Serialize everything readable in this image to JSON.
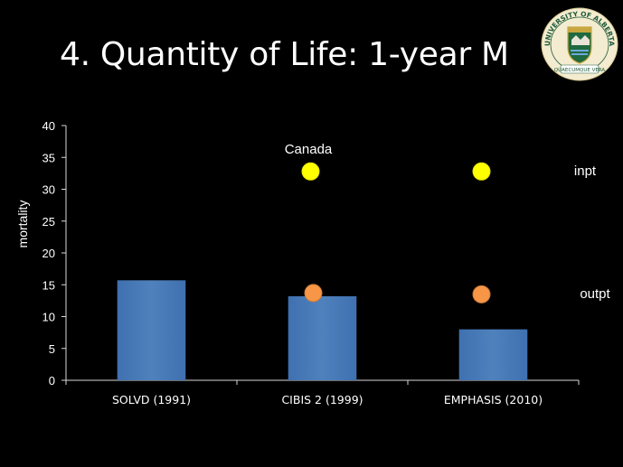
{
  "slide": {
    "title": "4. Quantity of Life: 1-year M"
  },
  "logo": {
    "top_text": "UNIVERSITY OF ALBERTA",
    "motto": "QUAECUMQUE VERA",
    "icon": "university-crest"
  },
  "chart_data": {
    "type": "bar",
    "categories": [
      "SOLVD (1991)",
      "CIBIS 2 (1999)",
      "EMPHASIS (2010)"
    ],
    "values": [
      15.7,
      13.2,
      8.0
    ],
    "ylabel": "mortality",
    "xlabel": "",
    "ylim": [
      0,
      40
    ],
    "yticks": [
      0,
      5,
      10,
      15,
      20,
      25,
      30,
      35,
      40
    ],
    "bar_color": "#4f81bd",
    "overlay_points": [
      {
        "label": "inpt",
        "color": "#ffff00",
        "points": [
          {
            "category": "CIBIS 2 (1999)",
            "y": 32.8
          },
          {
            "category": "EMPHASIS (2010)",
            "y": 32.8
          }
        ]
      },
      {
        "label": "outpt",
        "color": "#f79646",
        "points": [
          {
            "category": "CIBIS 2 (1999)",
            "y": 13.7
          },
          {
            "category": "EMPHASIS (2010)",
            "y": 13.5
          }
        ]
      }
    ],
    "annotations": [
      {
        "text": "Canada"
      },
      {
        "text": "inpt"
      },
      {
        "text": "outpt"
      }
    ],
    "grid": false,
    "legend": "none"
  }
}
